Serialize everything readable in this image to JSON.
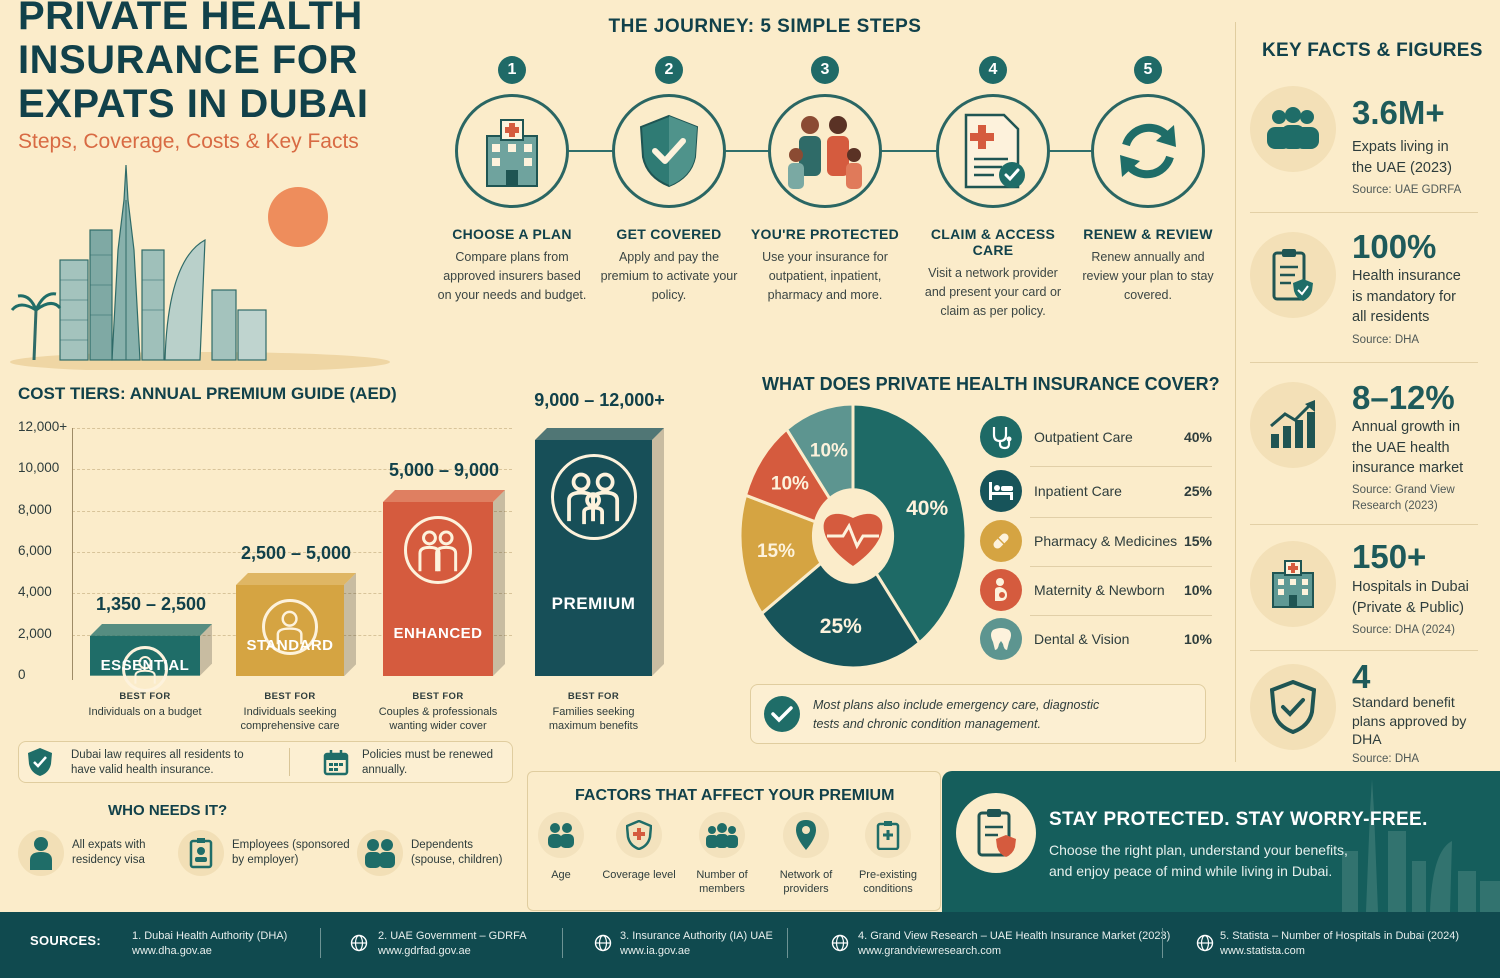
{
  "header": {
    "title": "PRIVATE HEALTH INSURANCE FOR EXPATS IN DUBAI",
    "subtitle": "Steps, Coverage, Costs & Key Facts"
  },
  "journey": {
    "title": "THE JOURNEY: 5 SIMPLE STEPS",
    "steps": [
      {
        "num": "1",
        "title": "CHOOSE A PLAN",
        "desc": "Compare plans from approved insurers based on your needs and budget.",
        "icon": "hospital-icon"
      },
      {
        "num": "2",
        "title": "GET COVERED",
        "desc": "Apply and pay the premium to activate your policy.",
        "icon": "shield-check-icon"
      },
      {
        "num": "3",
        "title": "YOU'RE PROTECTED",
        "desc": "Use your insurance for outpatient, inpatient, pharmacy and more.",
        "icon": "family-icon"
      },
      {
        "num": "4",
        "title": "CLAIM & ACCESS CARE",
        "desc": "Visit a network provider and present your card or claim as per policy.",
        "icon": "claim-document-icon"
      },
      {
        "num": "5",
        "title": "RENEW & REVIEW",
        "desc": "Renew annually and review your plan to stay covered.",
        "icon": "renew-arrows-icon"
      }
    ]
  },
  "cost_tiers": {
    "title": "COST TIERS: ANNUAL PREMIUM GUIDE (AED)",
    "best_for_label": "BEST FOR",
    "tiers": [
      {
        "name": "ESSENTIAL",
        "range": "1,350 – 2,500",
        "best_for": "Individuals on a budget",
        "color": "#1f6d68"
      },
      {
        "name": "STANDARD",
        "range": "2,500 – 5,000",
        "best_for": "Individuals seeking comprehensive care",
        "color": "#d5a442"
      },
      {
        "name": "ENHANCED",
        "range": "5,000 – 9,000",
        "best_for": "Couples & professionals wanting wider cover",
        "color": "#d55b3e"
      },
      {
        "name": "PREMIUM",
        "range": "9,000 – 12,000+",
        "best_for": "Families seeking maximum benefits",
        "color": "#174f58"
      }
    ],
    "law_note": "Dubai law requires all residents to have valid health insurance.",
    "renew_note": "Policies must be renewed annually."
  },
  "chart_data": {
    "type": "bar",
    "title": "COST TIERS: ANNUAL PREMIUM GUIDE (AED)",
    "categories": [
      "ESSENTIAL",
      "STANDARD",
      "ENHANCED",
      "PREMIUM"
    ],
    "values": [
      2500,
      5000,
      9000,
      12000
    ],
    "ranges": [
      [
        1350,
        2500
      ],
      [
        2500,
        5000
      ],
      [
        5000,
        9000
      ],
      [
        9000,
        12000
      ]
    ],
    "range_labels": [
      "1,350 – 2,500",
      "2,500 – 5,000",
      "5,000 – 9,000",
      "9,000 – 12,000+"
    ],
    "yticks": [
      "0",
      "2,000",
      "4,000",
      "6,000",
      "8,000",
      "10,000",
      "12,000+"
    ],
    "ytick_values": [
      0,
      2000,
      4000,
      6000,
      8000,
      10000,
      12000
    ],
    "ylim": [
      0,
      12000
    ],
    "grid": true
  },
  "coverage": {
    "title": "WHAT DOES PRIVATE HEALTH INSURANCE COVER?",
    "items": [
      {
        "label": "Outpatient Care",
        "pct": "40%",
        "value": 40,
        "color": "#1e6a66",
        "icon": "stethoscope-icon"
      },
      {
        "label": "Inpatient Care",
        "pct": "25%",
        "value": 25,
        "color": "#17545a",
        "icon": "hospital-bed-icon"
      },
      {
        "label": "Pharmacy & Medicines",
        "pct": "15%",
        "value": 15,
        "color": "#d5a442",
        "icon": "pill-icon"
      },
      {
        "label": "Maternity & Newborn",
        "pct": "10%",
        "value": 10,
        "color": "#d55b3e",
        "icon": "maternity-icon"
      },
      {
        "label": "Dental & Vision",
        "pct": "10%",
        "value": 10,
        "color": "#5d9590",
        "icon": "tooth-icon"
      }
    ],
    "note": "Most plans also include emergency care, diagnostic tests and chronic condition management."
  },
  "who": {
    "title": "WHO NEEDS IT?",
    "items": [
      {
        "label": "All expats with residency visa",
        "icon": "person-icon"
      },
      {
        "label": "Employees (sponsored by employer)",
        "icon": "id-badge-icon"
      },
      {
        "label": "Dependents (spouse, children)",
        "icon": "dependents-icon"
      }
    ]
  },
  "factors": {
    "title": "FACTORS THAT AFFECT YOUR PREMIUM",
    "items": [
      {
        "label": "Age",
        "icon": "age-icon"
      },
      {
        "label": "Coverage level",
        "icon": "coverage-shield-icon"
      },
      {
        "label": "Number of members",
        "icon": "members-icon"
      },
      {
        "label": "Network of providers",
        "icon": "location-pin-icon"
      },
      {
        "label": "Pre-existing conditions",
        "icon": "medical-record-icon"
      }
    ]
  },
  "banner": {
    "title": "STAY PROTECTED. STAY WORRY-FREE.",
    "text": "Choose the right plan, understand your benefits, and enjoy peace of mind while living in Dubai."
  },
  "facts": {
    "title": "KEY FACTS & FIGURES",
    "items": [
      {
        "value": "3.6M+",
        "desc": "Expats living in the UAE (2023)",
        "source": "Source: UAE GDRFA",
        "icon": "people-group-icon"
      },
      {
        "value": "100%",
        "desc": "Health insurance is mandatory for all residents",
        "source": "Source: DHA",
        "icon": "clipboard-shield-icon"
      },
      {
        "value": "8–12%",
        "desc": "Annual growth in the UAE health insurance market",
        "source": "Source: Grand View Research (2023)",
        "icon": "growth-chart-icon"
      },
      {
        "value": "150+",
        "desc": "Hospitals in Dubai (Private & Public)",
        "source": "Source: DHA (2024)",
        "icon": "hospital-building-icon"
      },
      {
        "value": "4",
        "desc": "Standard benefit plans approved by DHA",
        "source": "Source: DHA",
        "icon": "shield-check-icon"
      }
    ]
  },
  "sources": {
    "label": "SOURCES:",
    "items": [
      {
        "name": "1. Dubai Health Authority (DHA)",
        "url": "www.dha.gov.ae"
      },
      {
        "name": "2. UAE Government – GDRFA",
        "url": "www.gdrfad.gov.ae"
      },
      {
        "name": "3. Insurance Authority (IA) UAE",
        "url": "www.ia.gov.ae"
      },
      {
        "name": "4. Grand View Research – UAE Health Insurance Market (2023)",
        "url": "www.grandviewresearch.com"
      },
      {
        "name": "5. Statista – Number of Hospitals in Dubai (2024)",
        "url": "www.statista.com"
      }
    ]
  },
  "colors": {
    "teal": "#1f6d68",
    "dark_teal": "#104a4f",
    "mustard": "#d5a442",
    "coral": "#d55b3e",
    "cream": "#fbecca",
    "sun": "#ee8d5c"
  }
}
